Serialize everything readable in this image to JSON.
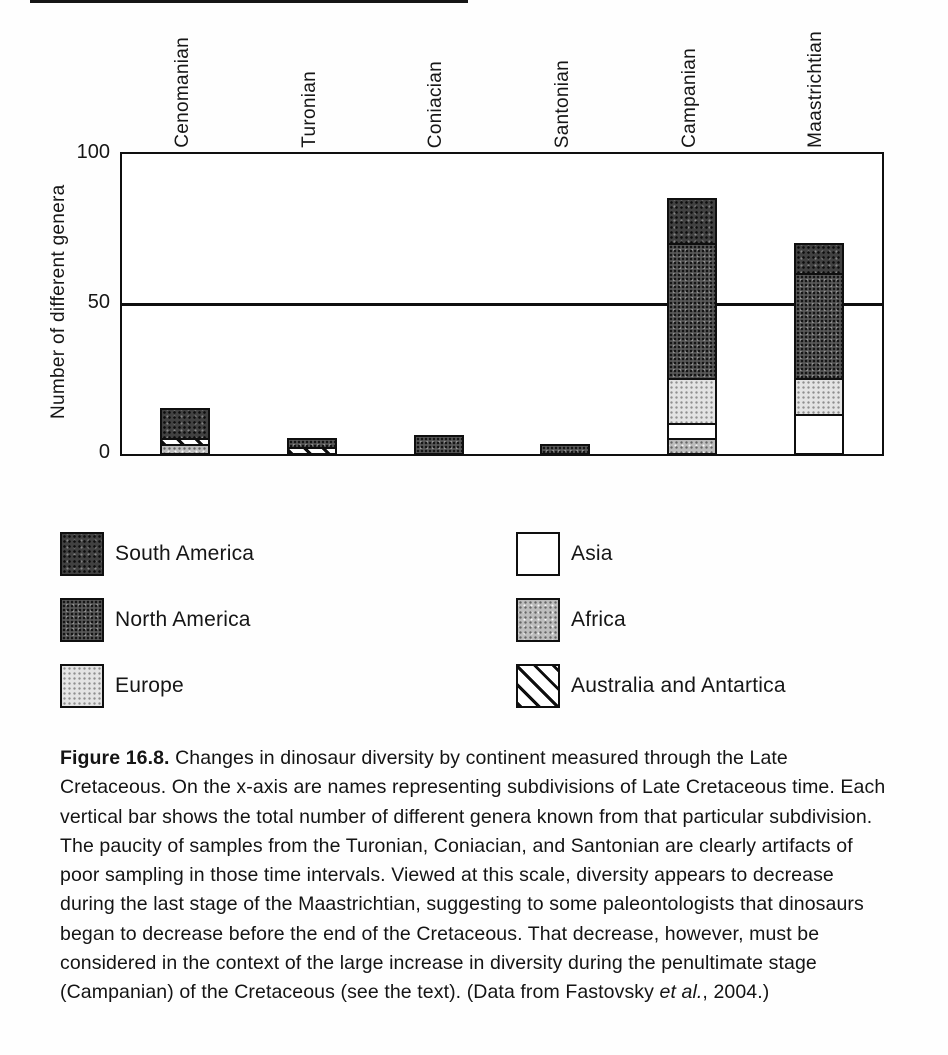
{
  "page": {
    "background": "#fefefe",
    "ink_color": "#111111"
  },
  "chart_data": {
    "type": "bar",
    "subtype": "stacked-bar",
    "title": "",
    "xlabel": "",
    "ylabel": "Number of different genera",
    "ylim": [
      0,
      100
    ],
    "yticks": [
      0,
      50,
      100
    ],
    "reference_line": 50,
    "grid": false,
    "categories": [
      "Cenomanian",
      "Turonian",
      "Coniacian",
      "Santonian",
      "Campanian",
      "Maastrichtian"
    ],
    "totals": [
      15,
      5,
      6,
      3,
      85,
      70
    ],
    "stack_order": [
      "africa",
      "australia_antartica",
      "asia",
      "europe",
      "north_america",
      "south_america"
    ],
    "series": [
      {
        "key": "south_america",
        "name": "South America",
        "pattern": "dark-stipple",
        "color": "#414141",
        "values": [
          10,
          0,
          0,
          0,
          15,
          10
        ]
      },
      {
        "key": "north_america",
        "name": "North America",
        "pattern": "dark-stipple-2",
        "color": "#585858",
        "values": [
          0,
          3,
          6,
          3,
          45,
          35
        ]
      },
      {
        "key": "europe",
        "name": "Europe",
        "pattern": "light-stipple",
        "color": "#e4e4e4",
        "values": [
          0,
          0,
          0,
          0,
          15,
          12
        ]
      },
      {
        "key": "asia",
        "name": "Asia",
        "pattern": "plain-white",
        "color": "#ffffff",
        "values": [
          0,
          0,
          0,
          0,
          5,
          13
        ]
      },
      {
        "key": "africa",
        "name": "Africa",
        "pattern": "medium-stipple",
        "color": "#bdbdbd",
        "values": [
          3,
          0,
          0,
          0,
          5,
          0
        ]
      },
      {
        "key": "australia_antartica",
        "name": "Australia and Antartica",
        "pattern": "diagonal-hatch",
        "color": "#ffffff",
        "values": [
          2,
          2,
          0,
          0,
          0,
          0
        ]
      }
    ],
    "legend": {
      "position": "below",
      "left_column": [
        "south_america",
        "north_america",
        "europe"
      ],
      "right_column": [
        "asia",
        "africa",
        "australia_antartica"
      ]
    }
  },
  "caption": {
    "label": "Figure 16.8.",
    "body_before_etal": " Changes in dinosaur diversity by continent measured through the Late Cretaceous. On the x-axis are names representing subdivisions of Late Cretaceous time. Each vertical bar shows the total number of different genera known from that particular subdivision. The paucity of samples from the Turonian, Coniacian, and Santonian are clearly artifacts of poor sampling in those time intervals. Viewed at this scale, diversity appears to decrease during the last stage of the Maastrichtian, suggesting to some paleontologists that dinosaurs began to decrease before the end of the Cretaceous. That decrease, however, must be considered in the context of the large increase in diversity during the penultimate stage (Campanian) of the Cretaceous (see the text). (Data from Fastovsky ",
    "etal": "et al.",
    "after_etal": ", 2004.)"
  }
}
